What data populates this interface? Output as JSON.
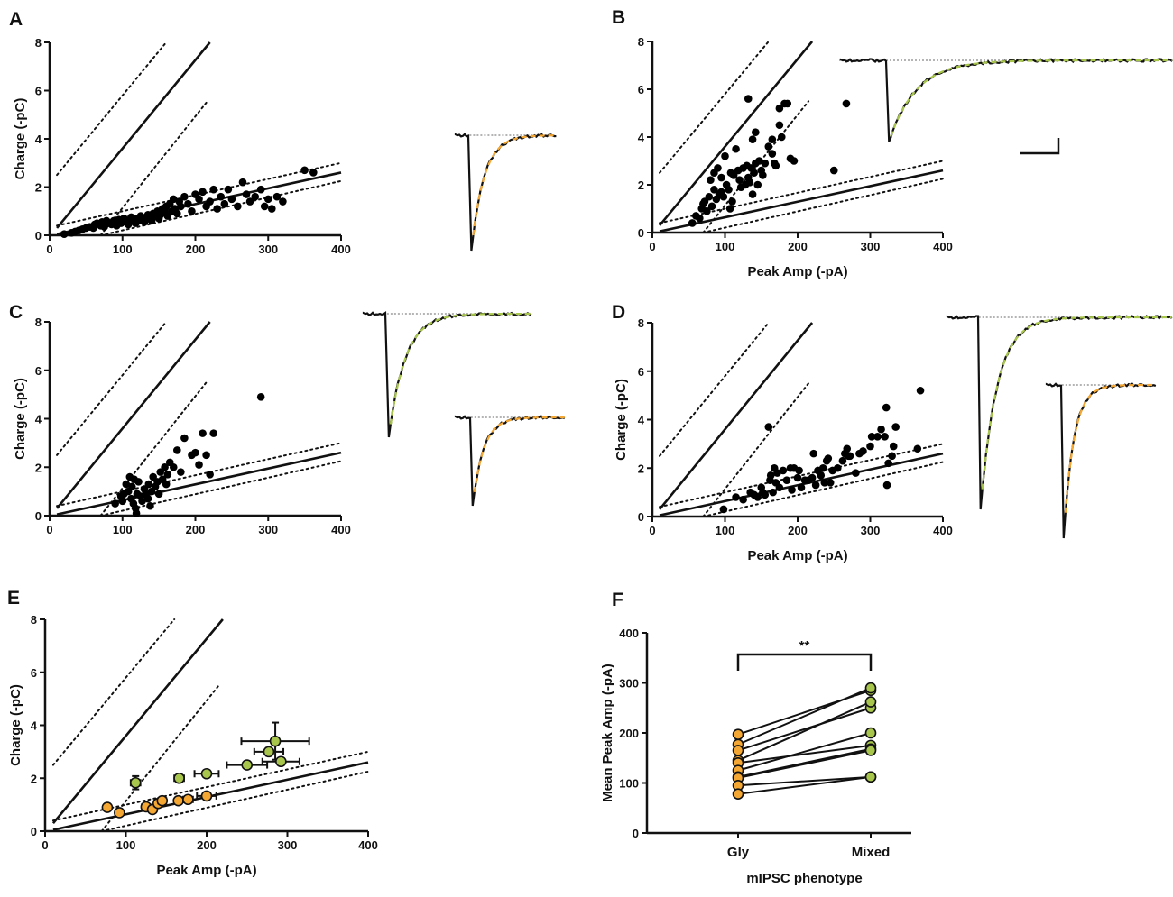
{
  "colors": {
    "gly": "#f5a733",
    "mixed": "#a9c64c",
    "points": "#000000"
  },
  "reference_lines": {
    "steep_solid": [
      [
        10,
        0.3
      ],
      [
        220,
        8
      ]
    ],
    "steep_dotted_upper": [
      [
        10,
        2.5
      ],
      [
        160,
        8
      ]
    ],
    "steep_dotted_lower": [
      [
        70,
        0
      ],
      [
        215,
        5.5
      ]
    ],
    "shallow_solid": [
      [
        10,
        0.05
      ],
      [
        400,
        2.6
      ]
    ],
    "shallow_dotted_upper": [
      [
        10,
        0.4
      ],
      [
        400,
        3.0
      ]
    ],
    "shallow_dotted_lower": [
      [
        70,
        0
      ],
      [
        400,
        2.25
      ]
    ]
  },
  "chart_data": [
    {
      "panel": "A",
      "type": "scatter",
      "xlabel": "",
      "ylabel": "Charge (-pC)",
      "xlim": [
        0,
        400
      ],
      "ylim": [
        0,
        8
      ],
      "xticks": [
        "0",
        "100",
        "200",
        "300",
        "400"
      ],
      "yticks": [
        "0",
        "2",
        "4",
        "6",
        "8"
      ],
      "points": [
        [
          20,
          0.05
        ],
        [
          30,
          0.1
        ],
        [
          35,
          0.15
        ],
        [
          40,
          0.2
        ],
        [
          45,
          0.25
        ],
        [
          50,
          0.3
        ],
        [
          55,
          0.35
        ],
        [
          60,
          0.3
        ],
        [
          62,
          0.45
        ],
        [
          65,
          0.5
        ],
        [
          70,
          0.4
        ],
        [
          72,
          0.55
        ],
        [
          75,
          0.35
        ],
        [
          78,
          0.6
        ],
        [
          80,
          0.5
        ],
        [
          85,
          0.45
        ],
        [
          88,
          0.6
        ],
        [
          90,
          0.55
        ],
        [
          92,
          0.4
        ],
        [
          95,
          0.65
        ],
        [
          98,
          0.5
        ],
        [
          100,
          0.6
        ],
        [
          102,
          0.7
        ],
        [
          105,
          0.55
        ],
        [
          108,
          0.45
        ],
        [
          110,
          0.65
        ],
        [
          112,
          0.75
        ],
        [
          115,
          0.6
        ],
        [
          118,
          0.5
        ],
        [
          120,
          0.7
        ],
        [
          122,
          0.6
        ],
        [
          125,
          0.8
        ],
        [
          128,
          0.65
        ],
        [
          130,
          0.55
        ],
        [
          132,
          0.7
        ],
        [
          135,
          0.85
        ],
        [
          138,
          0.75
        ],
        [
          140,
          0.6
        ],
        [
          142,
          0.9
        ],
        [
          145,
          0.8
        ],
        [
          148,
          1.0
        ],
        [
          150,
          0.7
        ],
        [
          152,
          0.85
        ],
        [
          155,
          1.1
        ],
        [
          158,
          0.95
        ],
        [
          160,
          1.2
        ],
        [
          162,
          0.8
        ],
        [
          165,
          1.3
        ],
        [
          168,
          1.0
        ],
        [
          170,
          1.5
        ],
        [
          172,
          1.1
        ],
        [
          175,
          0.9
        ],
        [
          178,
          1.4
        ],
        [
          180,
          1.2
        ],
        [
          185,
          1.6
        ],
        [
          190,
          1.3
        ],
        [
          195,
          1.0
        ],
        [
          200,
          1.7
        ],
        [
          205,
          1.5
        ],
        [
          210,
          1.8
        ],
        [
          215,
          1.2
        ],
        [
          220,
          1.4
        ],
        [
          225,
          1.9
        ],
        [
          230,
          1.1
        ],
        [
          235,
          1.6
        ],
        [
          240,
          1.3
        ],
        [
          245,
          1.9
        ],
        [
          250,
          1.5
        ],
        [
          258,
          1.2
        ],
        [
          265,
          2.2
        ],
        [
          270,
          1.7
        ],
        [
          275,
          1.4
        ],
        [
          282,
          1.6
        ],
        [
          290,
          1.9
        ],
        [
          295,
          1.2
        ],
        [
          300,
          1.5
        ],
        [
          305,
          1.1
        ],
        [
          312,
          1.6
        ],
        [
          320,
          1.4
        ],
        [
          350,
          2.7
        ],
        [
          362,
          2.6
        ]
      ]
    },
    {
      "panel": "B",
      "type": "scatter",
      "xlabel": "Peak Amp (-pA)",
      "ylabel": "",
      "xlim": [
        0,
        400
      ],
      "ylim": [
        0,
        8
      ],
      "xticks": [
        "0",
        "100",
        "200",
        "300",
        "400"
      ],
      "yticks": [
        "0",
        "2",
        "4",
        "6",
        "8"
      ],
      "points": [
        [
          55,
          0.4
        ],
        [
          60,
          0.7
        ],
        [
          65,
          0.6
        ],
        [
          68,
          1.0
        ],
        [
          70,
          1.2
        ],
        [
          72,
          1.3
        ],
        [
          75,
          0.9
        ],
        [
          78,
          1.5
        ],
        [
          80,
          2.2
        ],
        [
          82,
          1.1
        ],
        [
          85,
          1.8
        ],
        [
          85,
          2.5
        ],
        [
          88,
          1.4
        ],
        [
          90,
          2.7
        ],
        [
          92,
          1.6
        ],
        [
          95,
          2.3
        ],
        [
          95,
          1.7
        ],
        [
          98,
          1.5
        ],
        [
          100,
          3.2
        ],
        [
          102,
          2.0
        ],
        [
          105,
          1.8
        ],
        [
          107,
          1.0
        ],
        [
          108,
          2.5
        ],
        [
          110,
          1.3
        ],
        [
          112,
          2.4
        ],
        [
          115,
          3.5
        ],
        [
          118,
          2.6
        ],
        [
          120,
          2.2
        ],
        [
          122,
          1.9
        ],
        [
          125,
          2.7
        ],
        [
          128,
          2.0
        ],
        [
          130,
          2.8
        ],
        [
          132,
          2.3
        ],
        [
          134,
          2.1
        ],
        [
          136,
          2.7
        ],
        [
          138,
          3.9
        ],
        [
          138,
          1.6
        ],
        [
          140,
          2.5
        ],
        [
          142,
          4.2
        ],
        [
          142,
          2.9
        ],
        [
          145,
          2.0
        ],
        [
          147,
          3.0
        ],
        [
          150,
          2.6
        ],
        [
          152,
          2.4
        ],
        [
          155,
          2.9
        ],
        [
          132,
          5.6
        ],
        [
          160,
          3.6
        ],
        [
          165,
          3.9
        ],
        [
          165,
          3.3
        ],
        [
          168,
          2.9
        ],
        [
          170,
          2.8
        ],
        [
          175,
          4.5
        ],
        [
          175,
          5.2
        ],
        [
          178,
          4.0
        ],
        [
          182,
          5.4
        ],
        [
          186,
          5.4
        ],
        [
          190,
          3.1
        ],
        [
          195,
          3.0
        ],
        [
          250,
          2.6
        ],
        [
          267,
          5.4
        ]
      ]
    },
    {
      "panel": "C",
      "type": "scatter",
      "xlabel": "",
      "ylabel": "Charge (-pC)",
      "xlim": [
        0,
        400
      ],
      "ylim": [
        0,
        8
      ],
      "xticks": [
        "0",
        "100",
        "200",
        "300",
        "400"
      ],
      "yticks": [
        "0",
        "2",
        "4",
        "6",
        "8"
      ],
      "points": [
        [
          90,
          0.5
        ],
        [
          98,
          0.8
        ],
        [
          100,
          0.6
        ],
        [
          102,
          0.9
        ],
        [
          105,
          1.3
        ],
        [
          108,
          1.0
        ],
        [
          110,
          1.6
        ],
        [
          112,
          0.7
        ],
        [
          113,
          1.2
        ],
        [
          115,
          0.5
        ],
        [
          116,
          1.5
        ],
        [
          118,
          0.3
        ],
        [
          119,
          0.1
        ],
        [
          120,
          0.9
        ],
        [
          122,
          1.4
        ],
        [
          125,
          0.8
        ],
        [
          127,
          0.6
        ],
        [
          130,
          1.1
        ],
        [
          132,
          0.9
        ],
        [
          135,
          0.7
        ],
        [
          136,
          1.3
        ],
        [
          138,
          0.4
        ],
        [
          140,
          1.0
        ],
        [
          142,
          1.6
        ],
        [
          145,
          1.2
        ],
        [
          148,
          1.4
        ],
        [
          150,
          0.9
        ],
        [
          152,
          1.8
        ],
        [
          155,
          1.5
        ],
        [
          158,
          2.0
        ],
        [
          160,
          1.3
        ],
        [
          162,
          1.7
        ],
        [
          165,
          2.2
        ],
        [
          170,
          2.0
        ],
        [
          175,
          2.7
        ],
        [
          180,
          1.8
        ],
        [
          185,
          3.2
        ],
        [
          195,
          2.5
        ],
        [
          200,
          2.6
        ],
        [
          205,
          2.1
        ],
        [
          210,
          3.4
        ],
        [
          215,
          2.5
        ],
        [
          220,
          1.7
        ],
        [
          225,
          3.4
        ],
        [
          290,
          4.9
        ]
      ]
    },
    {
      "panel": "D",
      "type": "scatter",
      "xlabel": "Peak Amp (-pA)",
      "ylabel": "Charge (-pC)",
      "xlim": [
        0,
        400
      ],
      "ylim": [
        0,
        8
      ],
      "xticks": [
        "0",
        "100",
        "200",
        "300",
        "400"
      ],
      "yticks": [
        "0",
        "2",
        "4",
        "6",
        "8"
      ],
      "points": [
        [
          98,
          0.3
        ],
        [
          115,
          0.8
        ],
        [
          125,
          0.7
        ],
        [
          135,
          1.0
        ],
        [
          140,
          0.9
        ],
        [
          145,
          0.8
        ],
        [
          150,
          1.2
        ],
        [
          152,
          1.0
        ],
        [
          155,
          0.9
        ],
        [
          160,
          3.7
        ],
        [
          162,
          1.5
        ],
        [
          163,
          1.7
        ],
        [
          166,
          1.0
        ],
        [
          168,
          2.0
        ],
        [
          170,
          1.4
        ],
        [
          172,
          1.8
        ],
        [
          175,
          1.2
        ],
        [
          180,
          1.9
        ],
        [
          185,
          1.5
        ],
        [
          190,
          2.0
        ],
        [
          192,
          1.1
        ],
        [
          195,
          2.0
        ],
        [
          200,
          1.6
        ],
        [
          202,
          1.9
        ],
        [
          205,
          1.2
        ],
        [
          210,
          1.5
        ],
        [
          215,
          1.5
        ],
        [
          220,
          1.6
        ],
        [
          222,
          2.6
        ],
        [
          225,
          1.3
        ],
        [
          228,
          1.9
        ],
        [
          232,
          1.7
        ],
        [
          235,
          2.0
        ],
        [
          237,
          1.4
        ],
        [
          240,
          2.3
        ],
        [
          242,
          2.4
        ],
        [
          245,
          1.4
        ],
        [
          248,
          1.9
        ],
        [
          255,
          2.0
        ],
        [
          262,
          2.3
        ],
        [
          265,
          2.6
        ],
        [
          268,
          2.8
        ],
        [
          270,
          2.5
        ],
        [
          272,
          2.5
        ],
        [
          280,
          1.8
        ],
        [
          285,
          2.6
        ],
        [
          290,
          2.7
        ],
        [
          300,
          2.9
        ],
        [
          302,
          3.3
        ],
        [
          310,
          3.3
        ],
        [
          315,
          3.6
        ],
        [
          320,
          3.3
        ],
        [
          322,
          4.5
        ],
        [
          323,
          1.3
        ],
        [
          325,
          2.2
        ],
        [
          330,
          2.5
        ],
        [
          332,
          2.9
        ],
        [
          335,
          3.7
        ],
        [
          365,
          2.8
        ],
        [
          369,
          5.2
        ]
      ]
    },
    {
      "panel": "E",
      "type": "scatter",
      "xlabel": "Peak Amp (-pA)",
      "ylabel": "Charge (-pC)",
      "xlim": [
        0,
        400
      ],
      "ylim": [
        0,
        8
      ],
      "xticks": [
        "0",
        "100",
        "200",
        "300",
        "400"
      ],
      "yticks": [
        "0",
        "2",
        "4",
        "6",
        "8"
      ],
      "series": [
        {
          "name": "Gly",
          "color": "#f5a733",
          "points": [
            [
              77,
              0.9,
              3,
              0.05
            ],
            [
              92,
              0.7,
              3,
              0.05
            ],
            [
              125,
              0.92,
              5,
              0.1
            ],
            [
              133,
              0.82,
              4,
              0.08
            ],
            [
              140,
              1.05,
              5,
              0.1
            ],
            [
              145,
              1.15,
              5,
              0.08
            ],
            [
              165,
              1.15,
              4,
              0.06
            ],
            [
              177,
              1.2,
              6,
              0.07
            ],
            [
              200,
              1.33,
              12,
              0.1
            ]
          ]
        },
        {
          "name": "Mixed",
          "color": "#a9c64c",
          "points": [
            [
              112,
              1.83,
              6,
              0.25
            ],
            [
              166,
              2.0,
              6,
              0.12
            ],
            [
              200,
              2.17,
              15,
              0.1
            ],
            [
              250,
              2.5,
              25,
              0.1
            ],
            [
              277,
              3.0,
              18,
              0.15
            ],
            [
              285,
              3.4,
              42,
              0.7
            ],
            [
              292,
              2.63,
              23,
              0.12
            ]
          ]
        }
      ]
    },
    {
      "panel": "F",
      "type": "line",
      "xlabel": "mIPSC phenotype",
      "ylabel": "Mean Peak Amp (-pA)",
      "ylim": [
        0,
        400
      ],
      "categories": [
        "Gly",
        "Mixed"
      ],
      "yticks": [
        "0",
        "100",
        "200",
        "300",
        "400"
      ],
      "significance": "**",
      "pairs": [
        [
          197,
          285
        ],
        [
          177,
          290
        ],
        [
          165,
          250
        ],
        [
          145,
          262
        ],
        [
          140,
          175
        ],
        [
          125,
          200
        ],
        [
          112,
          168
        ],
        [
          110,
          165
        ],
        [
          95,
          112
        ],
        [
          78,
          112
        ]
      ]
    }
  ]
}
